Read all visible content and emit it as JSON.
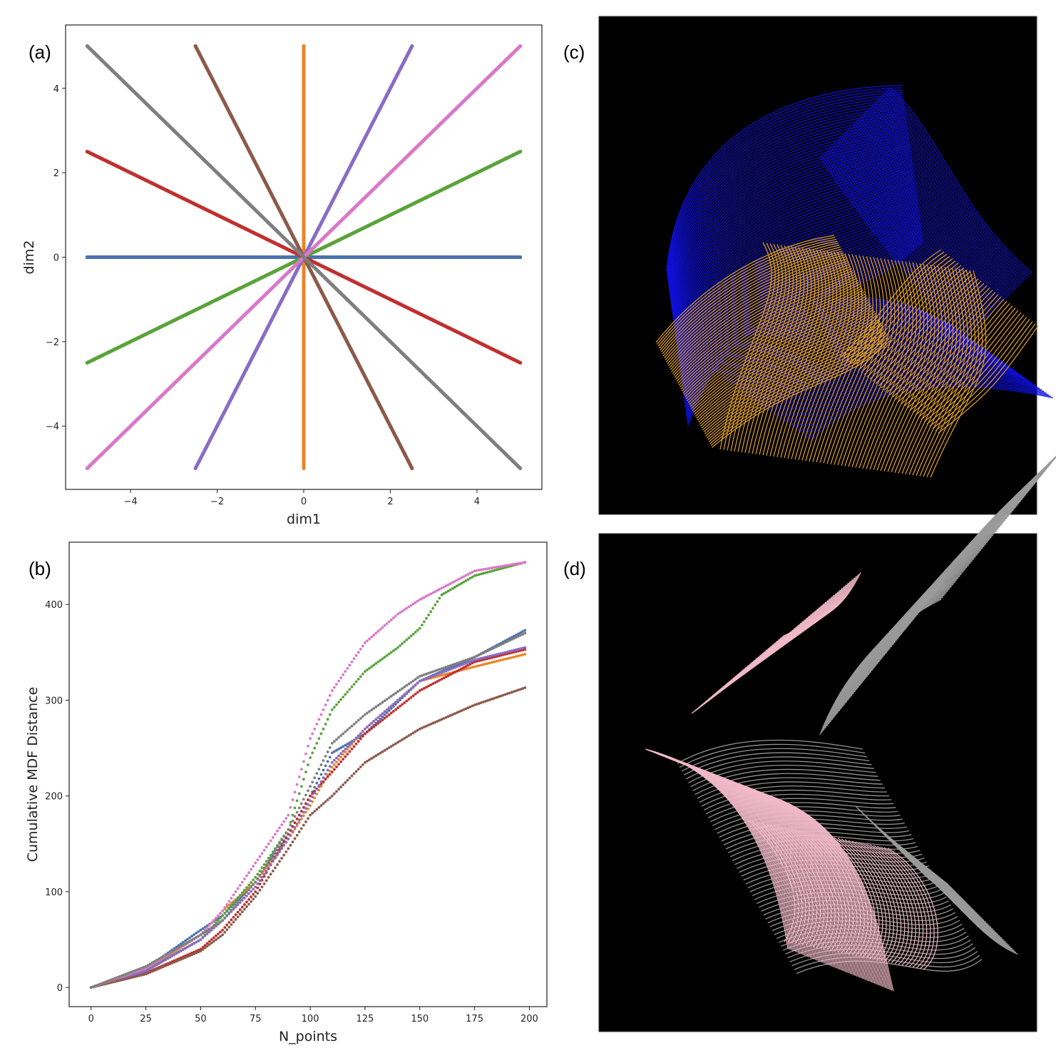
{
  "panels": {
    "a": "(a)",
    "b": "(b)",
    "c": "(c)",
    "d": "(d)"
  },
  "chart_data": [
    {
      "id": "a",
      "type": "line",
      "title": "",
      "xlabel": "dim1",
      "ylabel": "dim2",
      "xlim": [
        -5.5,
        5.5
      ],
      "ylim": [
        -5.5,
        5.5
      ],
      "xticks": [
        -4,
        -2,
        0,
        2,
        4
      ],
      "yticks": [
        -4,
        -2,
        0,
        2,
        4
      ],
      "xtick_labels": [
        "−4",
        "−2",
        "0",
        "2",
        "4"
      ],
      "ytick_labels": [
        "−4",
        "−2",
        "0",
        "2",
        "4"
      ],
      "grid": false,
      "series": [
        {
          "name": "blue",
          "color": "#4c72b0",
          "x": [
            -5,
            5
          ],
          "y": [
            0,
            0
          ]
        },
        {
          "name": "orange",
          "color": "#e8862a",
          "x": [
            0,
            0
          ],
          "y": [
            -5,
            5
          ]
        },
        {
          "name": "green",
          "color": "#5aa33a",
          "x": [
            -5,
            5
          ],
          "y": [
            -2.5,
            2.5
          ]
        },
        {
          "name": "red",
          "color": "#c03030",
          "x": [
            -5,
            5
          ],
          "y": [
            2.5,
            -2.5
          ]
        },
        {
          "name": "purple",
          "color": "#8a6cc4",
          "x": [
            -2.5,
            2.5
          ],
          "y": [
            -5,
            5
          ]
        },
        {
          "name": "brown",
          "color": "#8b5a4a",
          "x": [
            -2.5,
            2.5
          ],
          "y": [
            5,
            -5
          ]
        },
        {
          "name": "pink",
          "color": "#d978c8",
          "x": [
            -5,
            5
          ],
          "y": [
            -5,
            5
          ]
        },
        {
          "name": "gray",
          "color": "#7f7f7f",
          "x": [
            -5,
            5
          ],
          "y": [
            5,
            -5
          ]
        }
      ]
    },
    {
      "id": "b",
      "type": "scatter",
      "title": "",
      "xlabel": "N_points",
      "ylabel": "Cumulative MDF Distance",
      "xlim": [
        -10,
        208
      ],
      "ylim": [
        -20,
        465
      ],
      "xticks": [
        0,
        25,
        50,
        75,
        100,
        125,
        150,
        175,
        200
      ],
      "yticks": [
        0,
        100,
        200,
        300,
        400
      ],
      "xtick_labels": [
        "0",
        "25",
        "50",
        "75",
        "100",
        "125",
        "150",
        "175",
        "200"
      ],
      "ytick_labels": [
        "0",
        "100",
        "200",
        "300",
        "400"
      ],
      "grid": false,
      "series": [
        {
          "name": "blue",
          "color": "#4c72b0",
          "x": [
            0,
            25,
            50,
            60,
            75,
            90,
            100,
            110,
            125,
            150,
            175,
            198
          ],
          "y": [
            0,
            20,
            60,
            75,
            110,
            160,
            200,
            245,
            265,
            320,
            345,
            373
          ]
        },
        {
          "name": "orange",
          "color": "#e8862a",
          "x": [
            0,
            25,
            50,
            60,
            75,
            90,
            100,
            110,
            125,
            150,
            175,
            198
          ],
          "y": [
            0,
            18,
            55,
            80,
            110,
            155,
            190,
            230,
            270,
            320,
            335,
            348
          ]
        },
        {
          "name": "green",
          "color": "#5aa33a",
          "x": [
            0,
            25,
            50,
            60,
            75,
            90,
            100,
            110,
            125,
            140,
            150,
            160,
            175,
            198
          ],
          "y": [
            0,
            18,
            50,
            75,
            115,
            165,
            240,
            290,
            330,
            355,
            375,
            410,
            430,
            444
          ]
        },
        {
          "name": "red",
          "color": "#c03030",
          "x": [
            0,
            25,
            50,
            60,
            75,
            90,
            100,
            110,
            125,
            150,
            175,
            198
          ],
          "y": [
            0,
            15,
            40,
            60,
            100,
            160,
            200,
            225,
            265,
            310,
            340,
            353
          ]
        },
        {
          "name": "purple",
          "color": "#8a6cc4",
          "x": [
            0,
            25,
            50,
            60,
            75,
            90,
            100,
            110,
            125,
            150,
            175,
            198
          ],
          "y": [
            0,
            17,
            50,
            70,
            105,
            155,
            195,
            235,
            270,
            320,
            342,
            355
          ]
        },
        {
          "name": "brown",
          "color": "#8b5a4a",
          "x": [
            0,
            25,
            50,
            60,
            75,
            90,
            100,
            110,
            125,
            150,
            175,
            198
          ],
          "y": [
            0,
            14,
            38,
            55,
            95,
            145,
            180,
            200,
            235,
            270,
            295,
            313
          ]
        },
        {
          "name": "pink",
          "color": "#d978c8",
          "x": [
            0,
            25,
            50,
            60,
            75,
            90,
            100,
            110,
            125,
            140,
            150,
            175,
            198
          ],
          "y": [
            0,
            20,
            55,
            80,
            130,
            180,
            260,
            310,
            360,
            390,
            405,
            435,
            444
          ]
        },
        {
          "name": "gray",
          "color": "#7f7f7f",
          "x": [
            0,
            25,
            50,
            60,
            75,
            90,
            100,
            110,
            125,
            150,
            175,
            198
          ],
          "y": [
            0,
            22,
            55,
            70,
            110,
            165,
            210,
            255,
            285,
            325,
            345,
            370
          ]
        }
      ]
    }
  ],
  "renders": {
    "c": {
      "background": "#000000",
      "colors": [
        "#1010e0",
        "#e0a020"
      ]
    },
    "d": {
      "background": "#000000",
      "colors": [
        "#f0b8c8",
        "#9a9a9a"
      ]
    }
  }
}
